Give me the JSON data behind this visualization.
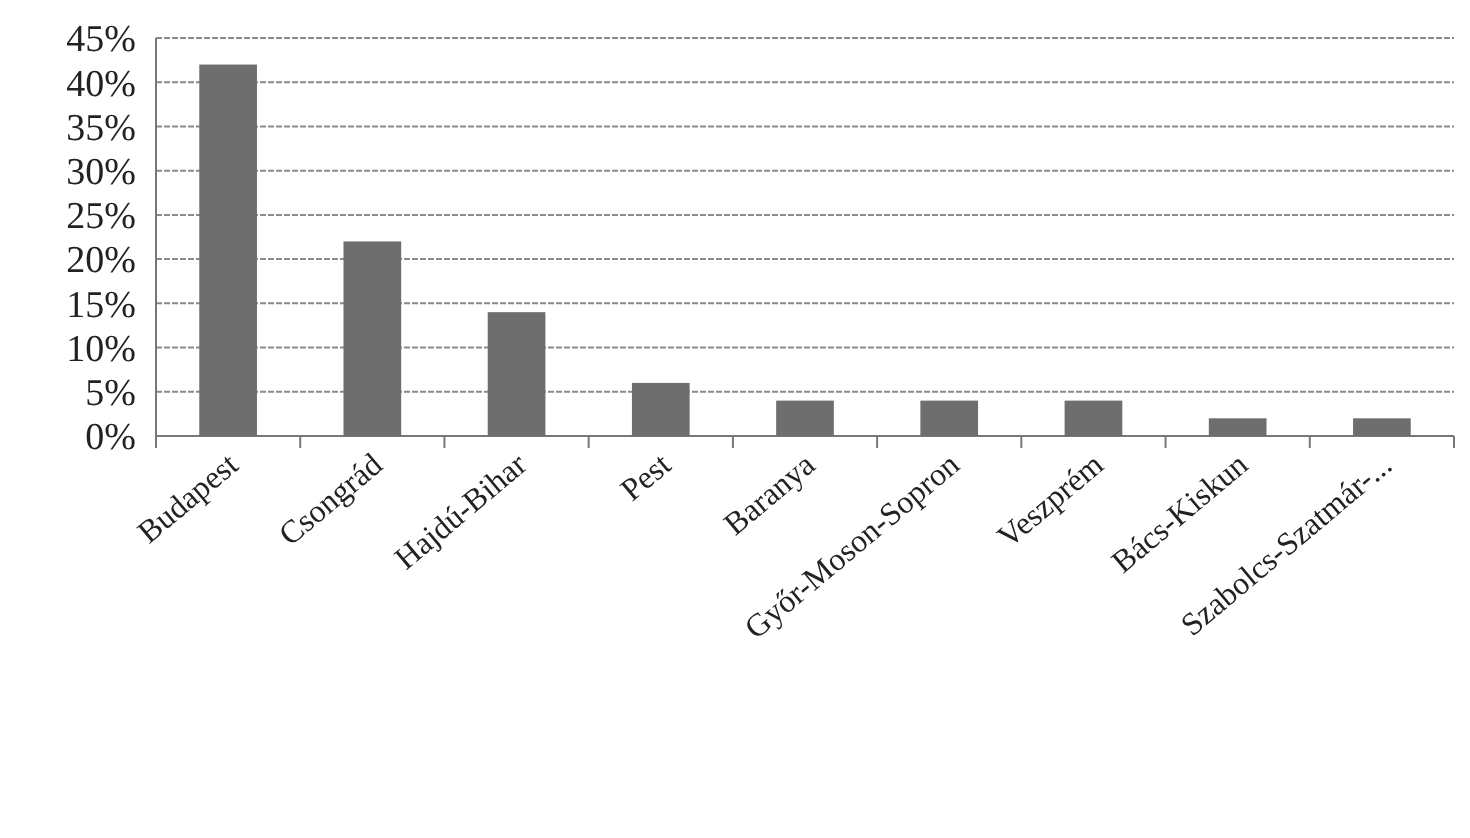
{
  "chart_data": {
    "type": "bar",
    "categories": [
      "Budapest",
      "Csongrád",
      "Hajdú-Bihar",
      "Pest",
      "Baranya",
      "Győr-Moson-Sopron",
      "Veszprém",
      "Bács-Kiskun",
      "Szabolcs-Szatmár-..."
    ],
    "values": [
      42,
      22,
      14,
      6,
      4,
      4,
      4,
      2,
      2
    ],
    "color": "#6e6e6e",
    "ylim": [
      0,
      45
    ],
    "yticks": [
      {
        "value": 0,
        "label": "0%"
      },
      {
        "value": 5,
        "label": "5%"
      },
      {
        "value": 10,
        "label": "10%"
      },
      {
        "value": 15,
        "label": "15%"
      },
      {
        "value": 20,
        "label": "20%"
      },
      {
        "value": 25,
        "label": "25%"
      },
      {
        "value": 30,
        "label": "30%"
      },
      {
        "value": 35,
        "label": "35%"
      },
      {
        "value": 40,
        "label": "40%"
      },
      {
        "value": 45,
        "label": "45%"
      }
    ],
    "grid": "y"
  }
}
